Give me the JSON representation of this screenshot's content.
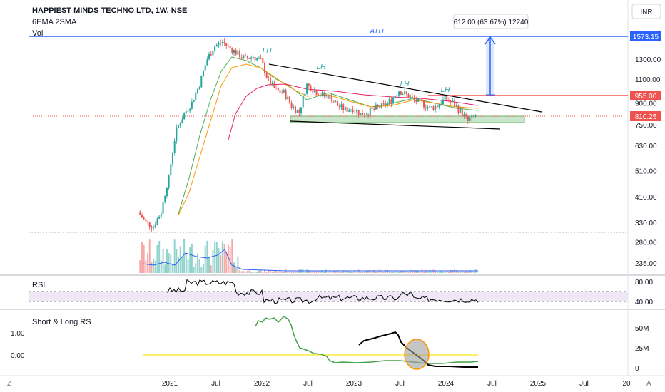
{
  "header": {
    "title": "HAPPIEST MINDS TECHNO LTD, 1W, NSE",
    "indicator1": "6EMA 2SMA",
    "indicator2": "Vol",
    "currency": "INR"
  },
  "measure_label": "612.00 (63.67%) 12240",
  "annotations": {
    "ath": "ATH",
    "lh1": "LH",
    "lh2": "LH",
    "lh3": "LH",
    "lh4": "LH"
  },
  "price_tags": {
    "ath": "1573.15",
    "resistance": "955.00",
    "current": "810.25"
  },
  "panes": {
    "rsi_title": "RSI",
    "rs_title": "Short & Long RS"
  },
  "corner": {
    "left": "Z",
    "right": "A"
  },
  "colors": {
    "up": "#26a69a",
    "down": "#ef5350",
    "ath_line": "#2962ff",
    "ema": "#4caf50",
    "sma": "#ff9800",
    "long_ma": "#e91e63",
    "support_zone": "#a5d6a7",
    "rsi_band": "#ede7f6",
    "rs_short": "#000000",
    "rs_long": "#43a047",
    "rs_zero": "#ffeb3b"
  },
  "chart_data": [
    {
      "type": "candlestick",
      "title": "HAPPIEST MINDS TECHNO LTD, 1W, NSE",
      "y_scale": "log",
      "y_ticks": [
        1573.15,
        1300.0,
        1100.0,
        955.0,
        900.0,
        810.25,
        750.0,
        630.0,
        510.0,
        410.0,
        330.0,
        280.0,
        235.0
      ],
      "x_ticks": [
        "2021",
        "Jul",
        "2022",
        "Jul",
        "2023",
        "Jul",
        "2024",
        "Jul",
        "2025",
        "Jul",
        "20"
      ],
      "close_series": [
        [
          "2020-09",
          360
        ],
        [
          "2020-10",
          330
        ],
        [
          "2020-11",
          320
        ],
        [
          "2020-12",
          360
        ],
        [
          "2021-01",
          480
        ],
        [
          "2021-02",
          720
        ],
        [
          "2021-03",
          820
        ],
        [
          "2021-04",
          900
        ],
        [
          "2021-05",
          1050
        ],
        [
          "2021-06",
          1300
        ],
        [
          "2021-07",
          1450
        ],
        [
          "2021-08",
          1500
        ],
        [
          "2021-09",
          1420
        ],
        [
          "2021-10",
          1360
        ],
        [
          "2021-11",
          1300
        ],
        [
          "2021-12",
          1330
        ],
        [
          "2022-01",
          1280
        ],
        [
          "2022-02",
          1080
        ],
        [
          "2022-03",
          1000
        ],
        [
          "2022-04",
          980
        ],
        [
          "2022-05",
          880
        ],
        [
          "2022-06",
          830
        ],
        [
          "2022-07",
          1050
        ],
        [
          "2022-08",
          1000
        ],
        [
          "2022-09",
          960
        ],
        [
          "2022-10",
          950
        ],
        [
          "2022-11",
          880
        ],
        [
          "2022-12",
          850
        ],
        [
          "2023-01",
          860
        ],
        [
          "2023-02",
          820
        ],
        [
          "2023-03",
          830
        ],
        [
          "2023-04",
          860
        ],
        [
          "2023-05",
          880
        ],
        [
          "2023-06",
          920
        ],
        [
          "2023-07",
          1000
        ],
        [
          "2023-08",
          960
        ],
        [
          "2023-09",
          920
        ],
        [
          "2023-10",
          900
        ],
        [
          "2023-11",
          860
        ],
        [
          "2023-12",
          880
        ],
        [
          "2024-01",
          930
        ],
        [
          "2024-02",
          900
        ],
        [
          "2024-03",
          840
        ],
        [
          "2024-04",
          770
        ],
        [
          "2024-05",
          810
        ]
      ],
      "levels": {
        "ath": 1573.15,
        "resistance": 955.0,
        "current": 810.25
      },
      "measure": {
        "change": 612.0,
        "percent": 63.67,
        "ticks": 12240
      }
    },
    {
      "type": "line",
      "title": "RSI",
      "y_ticks": [
        80.0,
        40.0
      ],
      "ylim": [
        30,
        85
      ]
    },
    {
      "type": "line",
      "title": "Short & Long RS",
      "left_ticks": [
        "1.00",
        "0.00"
      ],
      "right_ticks": [
        "50M",
        "25M",
        "0"
      ]
    }
  ]
}
